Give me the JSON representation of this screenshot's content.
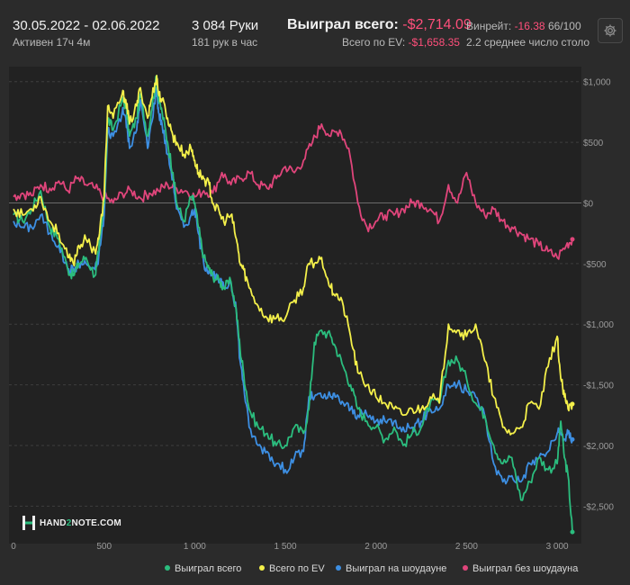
{
  "header": {
    "date_range": "30.05.2022 - 02.06.2022",
    "active_time": "Активен 17ч 4м",
    "hands": "3 084 Руки",
    "hands_per_hour": "181 рук в час",
    "won_total_label": "Выиграл всего:",
    "won_total_value": "-$2,714.09",
    "ev_label": "Всего по EV:",
    "ev_value": "-$1,658.35",
    "winrate_label": "Винрейт:",
    "winrate_value": "-16.38",
    "winrate_suffix": "66/100",
    "avg_tables": "2.2 среднее число столо"
  },
  "toolbar": {
    "settings_icon": "gear-icon"
  },
  "logo": {
    "prefix": "HAND",
    "digit": "2",
    "suffix": "NOTE.COM",
    "icon": "h2n-logo-icon"
  },
  "colors": {
    "won_total": "#2bbd7e",
    "ev": "#f4f04a",
    "showdown": "#3d8fe3",
    "non_showdown": "#e0457b",
    "background": "#2b2b2b",
    "plot_background": "#222222",
    "negative": "#ff4f7b"
  },
  "chart_data": {
    "type": "line",
    "title": "",
    "xlabel": "",
    "ylabel": "",
    "xlim": [
      0,
      3084
    ],
    "ylim": [
      -2750,
      1050
    ],
    "x_ticks": [
      0,
      500,
      1000,
      1500,
      2000,
      2500,
      3000
    ],
    "x_tick_labels": [
      "0",
      "500",
      "1 000",
      "1 500",
      "2 000",
      "2 500",
      "3 000"
    ],
    "y_ticks": [
      1000,
      500,
      0,
      -500,
      -1000,
      -1500,
      -2000,
      -2500
    ],
    "y_tick_labels": [
      "$1,000",
      "$500",
      "$0",
      "-$500",
      "-$1,000",
      "-$1,500",
      "-$2,000",
      "-$2,500"
    ],
    "grid": "horizontal dashed",
    "legend_position": "bottom-right",
    "series": [
      {
        "name": "Выиграл всего",
        "color": "#2bbd7e",
        "x": [
          0,
          50,
          100,
          150,
          200,
          250,
          300,
          330,
          360,
          400,
          450,
          470,
          500,
          520,
          550,
          600,
          620,
          640,
          680,
          700,
          740,
          760,
          790,
          800,
          820,
          850,
          880,
          900,
          940,
          980,
          1000,
          1020,
          1050,
          1080,
          1100,
          1140,
          1160,
          1200,
          1230,
          1250,
          1270,
          1300,
          1350,
          1400,
          1450,
          1500,
          1550,
          1600,
          1630,
          1660,
          1700,
          1750,
          1780,
          1820,
          1860,
          1900,
          1950,
          2000,
          2050,
          2100,
          2150,
          2200,
          2250,
          2300,
          2350,
          2400,
          2450,
          2500,
          2550,
          2600,
          2650,
          2700,
          2750,
          2800,
          2850,
          2900,
          2950,
          3000,
          3020,
          3040,
          3060,
          3084
        ],
        "y": [
          -100,
          -150,
          -50,
          100,
          -200,
          -300,
          -550,
          -600,
          -500,
          -450,
          -600,
          -400,
          0,
          700,
          600,
          850,
          800,
          550,
          700,
          900,
          550,
          750,
          1050,
          850,
          750,
          500,
          250,
          0,
          -150,
          50,
          0,
          -200,
          -450,
          -550,
          -600,
          -650,
          -700,
          -650,
          -900,
          -1200,
          -1400,
          -1700,
          -1850,
          -1900,
          -2000,
          -2000,
          -1850,
          -1900,
          -1700,
          -1150,
          -1050,
          -1100,
          -1200,
          -1350,
          -1500,
          -1700,
          -1800,
          -1850,
          -1950,
          -1850,
          -2000,
          -1900,
          -1850,
          -1650,
          -1650,
          -1300,
          -1300,
          -1450,
          -1650,
          -1750,
          -2000,
          -2150,
          -2100,
          -2450,
          -2300,
          -2100,
          -2200,
          -2150,
          -1800,
          -2100,
          -2250,
          -2714
        ]
      },
      {
        "name": "Всего по EV",
        "color": "#f4f04a",
        "x": [
          0,
          50,
          100,
          150,
          200,
          250,
          300,
          330,
          360,
          400,
          450,
          470,
          500,
          520,
          550,
          600,
          620,
          640,
          680,
          700,
          740,
          760,
          790,
          800,
          820,
          850,
          880,
          900,
          940,
          980,
          1000,
          1020,
          1050,
          1080,
          1100,
          1140,
          1160,
          1200,
          1230,
          1250,
          1270,
          1300,
          1350,
          1400,
          1450,
          1500,
          1550,
          1600,
          1630,
          1660,
          1700,
          1750,
          1780,
          1820,
          1860,
          1900,
          1950,
          2000,
          2050,
          2100,
          2150,
          2200,
          2250,
          2300,
          2350,
          2400,
          2450,
          2500,
          2550,
          2600,
          2650,
          2700,
          2750,
          2800,
          2850,
          2900,
          2950,
          3000,
          3020,
          3040,
          3060,
          3084
        ],
        "y": [
          -50,
          -100,
          -50,
          50,
          -150,
          -250,
          -450,
          -500,
          -350,
          -300,
          -400,
          -300,
          50,
          800,
          700,
          900,
          850,
          650,
          800,
          950,
          700,
          850,
          1050,
          900,
          850,
          700,
          550,
          500,
          400,
          450,
          350,
          250,
          200,
          150,
          0,
          -100,
          -150,
          -100,
          -300,
          -500,
          -550,
          -700,
          -850,
          -950,
          -950,
          -950,
          -800,
          -700,
          -500,
          -500,
          -450,
          -700,
          -750,
          -850,
          -1100,
          -1400,
          -1500,
          -1600,
          -1650,
          -1700,
          -1750,
          -1700,
          -1700,
          -1600,
          -1650,
          -1000,
          -1050,
          -1100,
          -1000,
          -1300,
          -1600,
          -1850,
          -1900,
          -1850,
          -1650,
          -1700,
          -1350,
          -1100,
          -1450,
          -1600,
          -1700,
          -1658
        ]
      },
      {
        "name": "Выиграл на шоудауне",
        "color": "#3d8fe3",
        "x": [
          0,
          50,
          100,
          150,
          200,
          250,
          300,
          330,
          360,
          400,
          450,
          470,
          500,
          520,
          550,
          600,
          620,
          640,
          680,
          700,
          740,
          760,
          790,
          800,
          820,
          850,
          880,
          900,
          940,
          980,
          1000,
          1020,
          1050,
          1080,
          1100,
          1140,
          1160,
          1200,
          1230,
          1250,
          1270,
          1300,
          1350,
          1400,
          1450,
          1500,
          1550,
          1600,
          1630,
          1660,
          1700,
          1750,
          1780,
          1820,
          1860,
          1900,
          1950,
          2000,
          2050,
          2100,
          2150,
          2200,
          2250,
          2300,
          2350,
          2400,
          2450,
          2500,
          2550,
          2600,
          2650,
          2700,
          2750,
          2800,
          2850,
          2900,
          2950,
          3000,
          3020,
          3040,
          3060,
          3084
        ],
        "y": [
          -150,
          -200,
          -200,
          -100,
          -250,
          -350,
          -550,
          -550,
          -500,
          -500,
          -550,
          -450,
          -100,
          600,
          550,
          750,
          700,
          450,
          600,
          850,
          450,
          650,
          950,
          750,
          650,
          400,
          200,
          -50,
          -200,
          -100,
          -50,
          -250,
          -500,
          -550,
          -600,
          -650,
          -700,
          -650,
          -900,
          -1300,
          -1500,
          -1850,
          -2000,
          -2050,
          -2150,
          -2200,
          -2100,
          -2050,
          -1600,
          -1600,
          -1600,
          -1600,
          -1600,
          -1650,
          -1700,
          -1750,
          -1750,
          -1800,
          -1800,
          -1800,
          -1850,
          -1850,
          -1800,
          -1700,
          -1700,
          -1500,
          -1500,
          -1550,
          -1600,
          -1750,
          -2150,
          -2300,
          -2250,
          -2300,
          -2150,
          -2100,
          -2050,
          -1900,
          -1900,
          -1950,
          -1900,
          -1950
        ]
      },
      {
        "name": "Выиграл без шоудауна",
        "color": "#e0457b",
        "x": [
          0,
          50,
          100,
          150,
          200,
          250,
          300,
          350,
          400,
          450,
          500,
          550,
          600,
          650,
          700,
          750,
          800,
          850,
          900,
          950,
          1000,
          1050,
          1100,
          1150,
          1200,
          1250,
          1300,
          1350,
          1400,
          1450,
          1500,
          1550,
          1600,
          1650,
          1700,
          1750,
          1800,
          1850,
          1900,
          1950,
          2000,
          2050,
          2100,
          2150,
          2200,
          2250,
          2300,
          2350,
          2400,
          2450,
          2500,
          2550,
          2600,
          2650,
          2700,
          2750,
          2800,
          2850,
          2900,
          2950,
          3000,
          3050,
          3084
        ],
        "y": [
          50,
          80,
          60,
          150,
          120,
          180,
          100,
          200,
          150,
          120,
          50,
          0,
          80,
          100,
          40,
          80,
          100,
          150,
          120,
          100,
          50,
          100,
          80,
          250,
          150,
          200,
          250,
          150,
          120,
          200,
          300,
          250,
          350,
          500,
          650,
          550,
          600,
          450,
          0,
          -200,
          -150,
          -100,
          -100,
          -50,
          0,
          0,
          -50,
          -150,
          150,
          0,
          250,
          0,
          -100,
          -50,
          -150,
          -200,
          -250,
          -300,
          -350,
          -400,
          -450,
          -350,
          -300
        ]
      }
    ]
  },
  "legend": [
    {
      "label": "Выиграл всего",
      "color": "#2bbd7e"
    },
    {
      "label": "Всего по EV",
      "color": "#f4f04a"
    },
    {
      "label": "Выиграл на шоудауне",
      "color": "#3d8fe3"
    },
    {
      "label": "Выиграл без шоудауна",
      "color": "#e0457b"
    }
  ]
}
